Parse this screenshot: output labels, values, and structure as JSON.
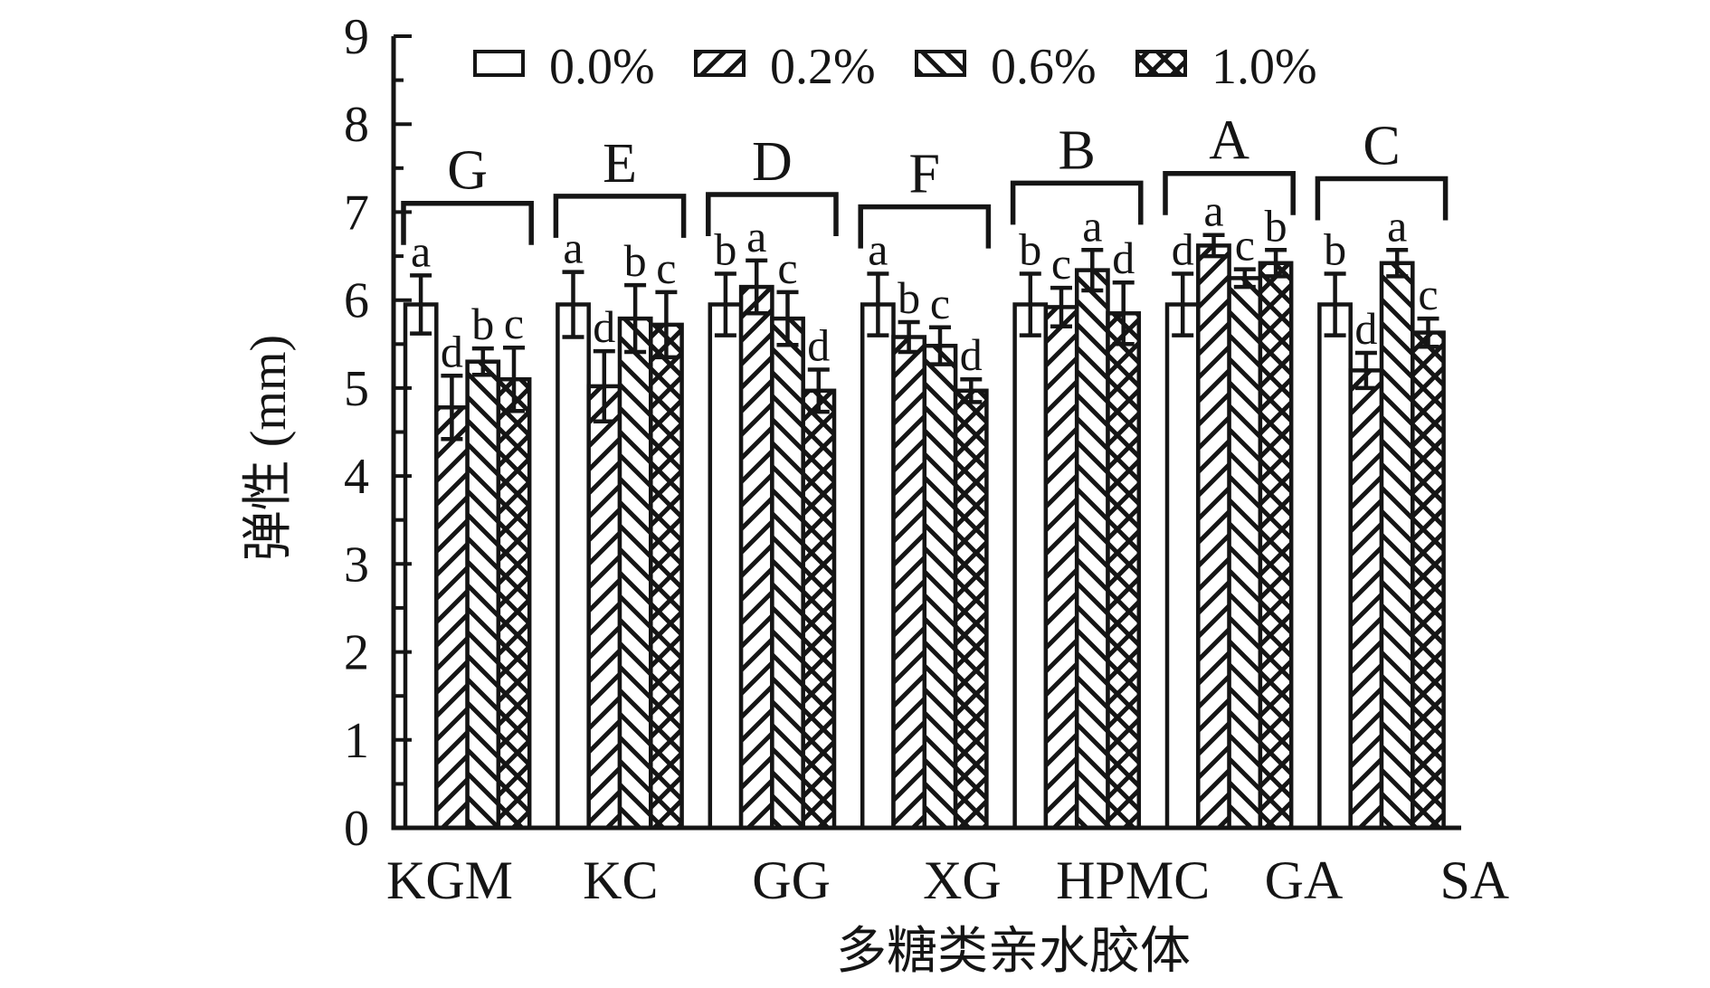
{
  "chart_data": {
    "type": "bar",
    "title": "",
    "xlabel": "多糖类亲水胶体",
    "ylabel": "弹性 (mm)",
    "ylim": [
      0,
      9
    ],
    "ytick_step": 1,
    "yminor_step": 0.5,
    "ytick_labels": [
      "0",
      "1",
      "2",
      "3",
      "4",
      "5",
      "6",
      "7",
      "8",
      "9"
    ],
    "grid": false,
    "legend_position": "top-inside",
    "categories": [
      "KGM",
      "KC",
      "GG",
      "XG",
      "HPMC",
      "GA",
      "SA"
    ],
    "legend": [
      {
        "label": "0.0%",
        "hatch": "none"
      },
      {
        "label": "0.2%",
        "hatch": "forward-diagonal"
      },
      {
        "label": "0.6%",
        "hatch": "back-diagonal"
      },
      {
        "label": "1.0%",
        "hatch": "cross"
      }
    ],
    "series": [
      {
        "name": "0.0%",
        "hatch": "none",
        "values": [
          5.95,
          5.95,
          5.95,
          5.95,
          5.95,
          5.95,
          5.95
        ],
        "errors": [
          0.33,
          0.37,
          0.35,
          0.35,
          0.35,
          0.35,
          0.35
        ],
        "sig_letters": [
          "a",
          "a",
          "b",
          "a",
          "b",
          "d",
          "b"
        ]
      },
      {
        "name": "0.2%",
        "hatch": "forward-diagonal",
        "values": [
          4.78,
          5.02,
          6.15,
          5.58,
          5.92,
          6.62,
          5.2
        ],
        "errors": [
          0.36,
          0.4,
          0.3,
          0.17,
          0.22,
          0.12,
          0.2
        ],
        "sig_letters": [
          "d",
          "d",
          "a",
          "b",
          "c",
          "a",
          "d"
        ]
      },
      {
        "name": "0.6%",
        "hatch": "back-diagonal",
        "values": [
          5.3,
          5.79,
          5.79,
          5.48,
          6.34,
          6.25,
          6.42
        ],
        "errors": [
          0.15,
          0.38,
          0.3,
          0.21,
          0.23,
          0.1,
          0.15
        ],
        "sig_letters": [
          "b",
          "b",
          "c",
          "c",
          "a",
          "c",
          "a"
        ]
      },
      {
        "name": "1.0%",
        "hatch": "cross",
        "values": [
          5.1,
          5.72,
          4.97,
          4.97,
          5.85,
          6.42,
          5.63
        ],
        "errors": [
          0.36,
          0.37,
          0.24,
          0.13,
          0.35,
          0.15,
          0.16
        ],
        "sig_letters": [
          "c",
          "c",
          "d",
          "d",
          "d",
          "b",
          "c"
        ]
      }
    ],
    "group_brackets": [
      {
        "label": "G",
        "y": 7.1
      },
      {
        "label": "E",
        "y": 7.18
      },
      {
        "label": "D",
        "y": 7.2
      },
      {
        "label": "F",
        "y": 7.06
      },
      {
        "label": "B",
        "y": 7.33
      },
      {
        "label": "A",
        "y": 7.44
      },
      {
        "label": "C",
        "y": 7.38
      }
    ],
    "colors": {
      "stroke": "#151515",
      "bar_fill": "#ffffff",
      "background": "#ffffff"
    }
  }
}
